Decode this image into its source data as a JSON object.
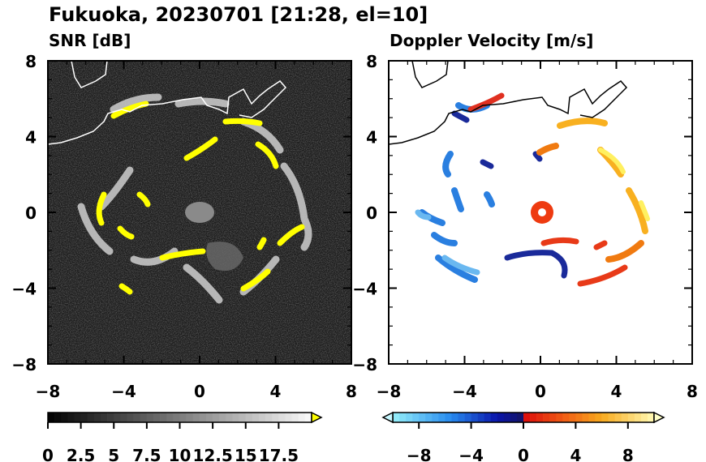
{
  "title": "Fukuoka, 20230701 [21:28, el=10]",
  "chart_data": [
    {
      "type": "heatmap",
      "title": "SNR [dB]",
      "xlabel": "",
      "ylabel": "",
      "xlim": [
        -8,
        8
      ],
      "ylim": [
        -8,
        8
      ],
      "x_ticks": [
        -8,
        -4,
        0,
        4,
        8
      ],
      "y_ticks": [
        8,
        4,
        0,
        -4,
        -8
      ],
      "colorbar": {
        "ticks": [
          "0",
          "2.5",
          "5",
          "7.5",
          "10",
          "12.5",
          "15",
          "17.5"
        ],
        "range": [
          0,
          20
        ],
        "levels": 40,
        "extend": "max",
        "colormap": "grayscale-black-to-white",
        "over_color": "#ffff00"
      }
    },
    {
      "type": "heatmap",
      "title": "Doppler Velocity [m/s]",
      "xlabel": "",
      "ylabel": "",
      "xlim": [
        -8,
        8
      ],
      "ylim": [
        -8,
        8
      ],
      "x_ticks": [
        -8,
        -4,
        0,
        4,
        8
      ],
      "y_ticks": [
        8,
        4,
        0,
        -4,
        -8
      ],
      "colorbar": {
        "ticks": [
          "−8",
          "−4",
          "0",
          "4",
          "8"
        ],
        "range": [
          -10,
          10
        ],
        "levels": 40,
        "extend": "both",
        "colormap": "cyan-blue-navy-red-orange-yellow",
        "under_color": "#c8f8ff",
        "over_color": "#ffffc8"
      }
    }
  ]
}
